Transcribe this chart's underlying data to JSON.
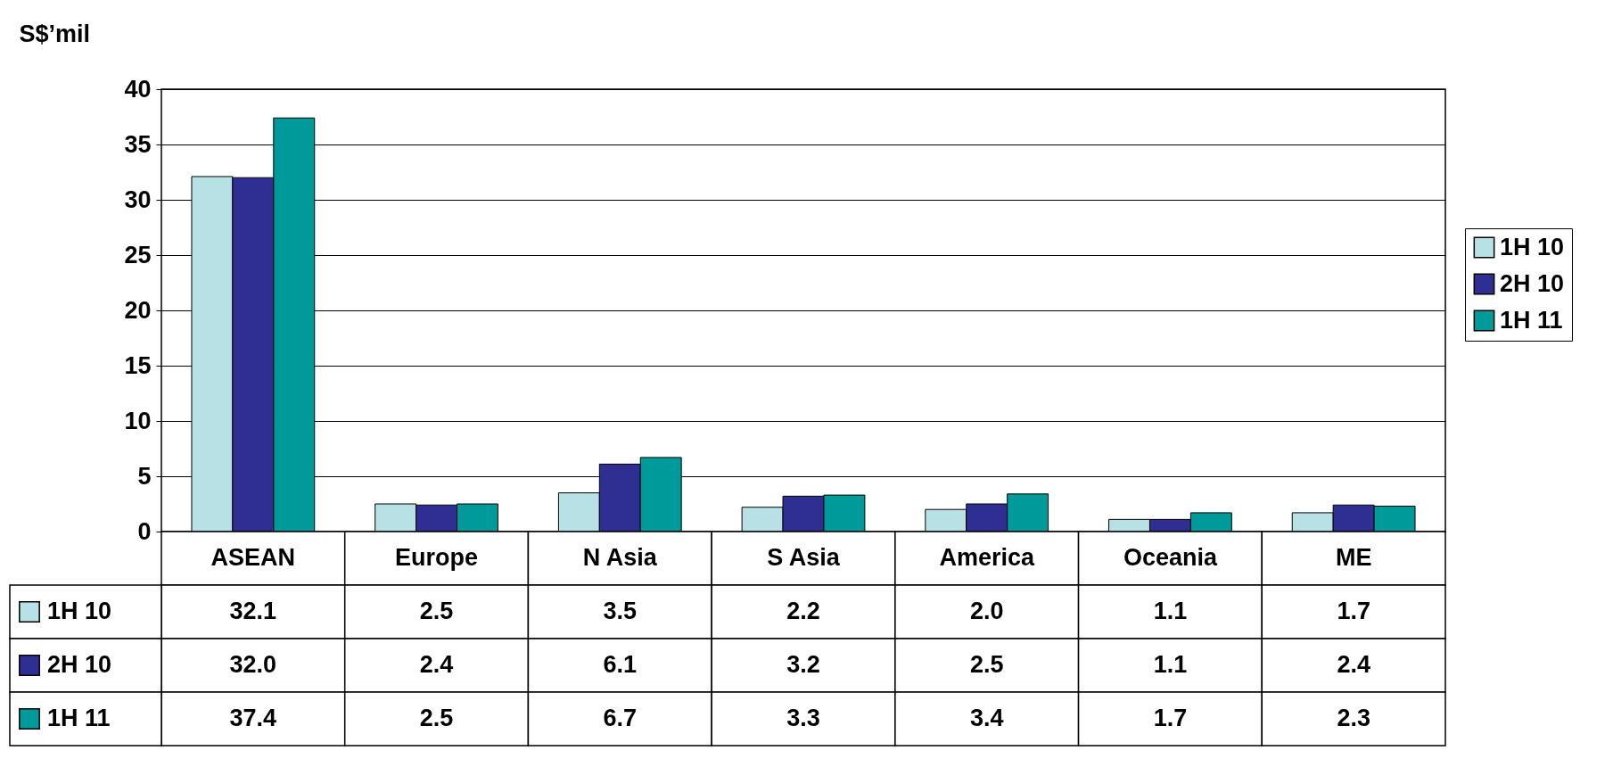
{
  "chart_data": {
    "type": "bar",
    "ylabel": "S$’mil",
    "categories": [
      "ASEAN",
      "Europe",
      "N Asia",
      "S Asia",
      "America",
      "Oceania",
      "ME"
    ],
    "series": [
      {
        "name": "1H 10",
        "color": "#b7e1e4",
        "values": [
          32.1,
          2.5,
          3.5,
          2.2,
          2.0,
          1.1,
          1.7
        ],
        "value_labels": [
          "32.1",
          "2.5",
          "3.5",
          "2.2",
          "2.0",
          "1.1",
          "1.7"
        ]
      },
      {
        "name": "2H 10",
        "color": "#2f2f93",
        "values": [
          32.0,
          2.4,
          6.1,
          3.2,
          2.5,
          1.1,
          2.4
        ],
        "value_labels": [
          "32.0",
          "2.4",
          "6.1",
          "3.2",
          "2.5",
          "1.1",
          "2.4"
        ]
      },
      {
        "name": "1H 11",
        "color": "#009a9a",
        "values": [
          37.4,
          2.5,
          6.7,
          3.3,
          3.4,
          1.7,
          2.3
        ],
        "value_labels": [
          "37.4",
          "2.5",
          "6.7",
          "3.3",
          "3.4",
          "1.7",
          "2.3"
        ]
      }
    ],
    "ylim": [
      0,
      40
    ],
    "yticks": [
      0,
      5,
      10,
      15,
      20,
      25,
      30,
      35,
      40
    ],
    "grid": "y",
    "legend": "right"
  }
}
